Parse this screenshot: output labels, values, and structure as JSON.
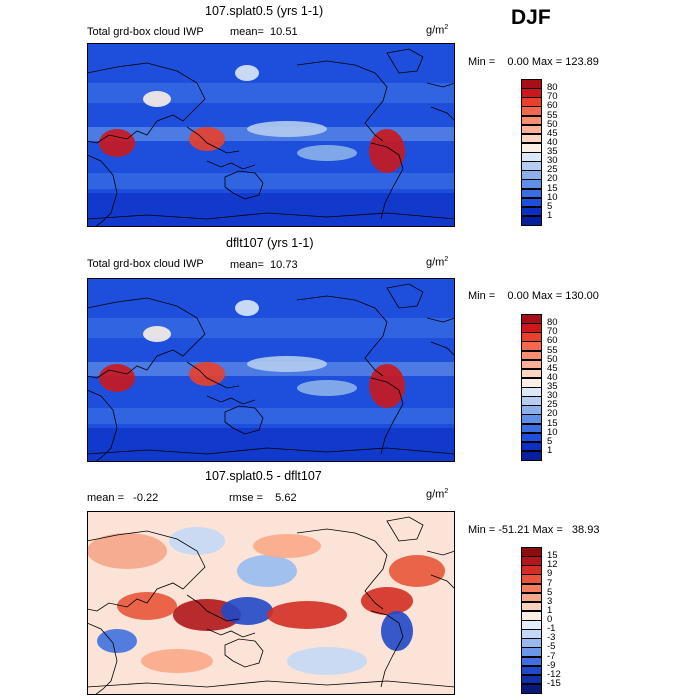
{
  "season": "DJF",
  "panels": [
    {
      "title": "107.splat0.5 (yrs 1-1)",
      "variable": "Total grd-box cloud IWP",
      "stat_text": "mean=  10.51",
      "units_base": "g/m",
      "units_exp": "2",
      "minmax_text": "Min =    0.00 Max = 123.89",
      "colorbar_labels": [
        "80",
        "70",
        "60",
        "55",
        "50",
        "45",
        "40",
        "35",
        "30",
        "25",
        "20",
        "15",
        "10",
        "5",
        "1"
      ],
      "colorbar_colors": [
        "#a50f15",
        "#cb181d",
        "#e8402a",
        "#f4694d",
        "#f98f71",
        "#fcb296",
        "#fdd4c0",
        "#fcefe6",
        "#dbe8f7",
        "#b4cdf0",
        "#8cb1ea",
        "#5f8fe6",
        "#3a6ee3",
        "#1d4fdc",
        "#0d30c4",
        "#061f9a"
      ]
    },
    {
      "title": "dflt107 (yrs 1-1)",
      "variable": "Total grd-box cloud IWP",
      "stat_text": "mean=  10.73",
      "units_base": "g/m",
      "units_exp": "2",
      "minmax_text": "Min =    0.00 Max = 130.00",
      "colorbar_labels": [
        "80",
        "70",
        "60",
        "55",
        "50",
        "45",
        "40",
        "35",
        "30",
        "25",
        "20",
        "15",
        "10",
        "5",
        "1"
      ],
      "colorbar_colors": [
        "#a50f15",
        "#cb181d",
        "#e8402a",
        "#f4694d",
        "#f98f71",
        "#fcb296",
        "#fdd4c0",
        "#fcefe6",
        "#dbe8f7",
        "#b4cdf0",
        "#8cb1ea",
        "#5f8fe6",
        "#3a6ee3",
        "#1d4fdc",
        "#0d30c4",
        "#061f9a"
      ]
    },
    {
      "title": "107.splat0.5 - dflt107",
      "mean_text": "mean =   -0.22",
      "rmse_text": "rmse =    5.62",
      "units_base": "g/m",
      "units_exp": "2",
      "minmax_text": "Min = -51.21 Max =   38.93",
      "colorbar_labels": [
        "15",
        "12",
        "9",
        "7",
        "5",
        "3",
        "1",
        "0",
        "-1",
        "-3",
        "-5",
        "-7",
        "-9",
        "-12",
        "-15"
      ],
      "colorbar_colors": [
        "#8c0d0d",
        "#b0161a",
        "#d32d24",
        "#e8553b",
        "#f47f5e",
        "#f9a98a",
        "#fcd1bb",
        "#fdeee4",
        "#e4eefb",
        "#c3d8f5",
        "#98bbef",
        "#6a98e8",
        "#3f70de",
        "#2048c8",
        "#1030a8",
        "#08197a"
      ]
    }
  ],
  "chart_data": [
    {
      "type": "heatmap",
      "title": "107.splat0.5 (yrs 1-1)",
      "subtitle": "Total grd-box cloud IWP",
      "mean": 10.51,
      "min": 0.0,
      "max": 123.89,
      "units": "g/m2",
      "colorbar_levels": [
        1,
        5,
        10,
        15,
        20,
        25,
        30,
        35,
        40,
        45,
        50,
        55,
        60,
        70,
        80
      ]
    },
    {
      "type": "heatmap",
      "title": "dflt107 (yrs 1-1)",
      "subtitle": "Total grd-box cloud IWP",
      "mean": 10.73,
      "min": 0.0,
      "max": 130.0,
      "units": "g/m2",
      "colorbar_levels": [
        1,
        5,
        10,
        15,
        20,
        25,
        30,
        35,
        40,
        45,
        50,
        55,
        60,
        70,
        80
      ]
    },
    {
      "type": "heatmap",
      "title": "107.splat0.5 - dflt107",
      "mean": -0.22,
      "rmse": 5.62,
      "min": -51.21,
      "max": 38.93,
      "units": "g/m2",
      "colorbar_levels": [
        -15,
        -12,
        -9,
        -7,
        -5,
        -3,
        -1,
        0,
        1,
        3,
        5,
        7,
        9,
        12,
        15
      ]
    }
  ]
}
